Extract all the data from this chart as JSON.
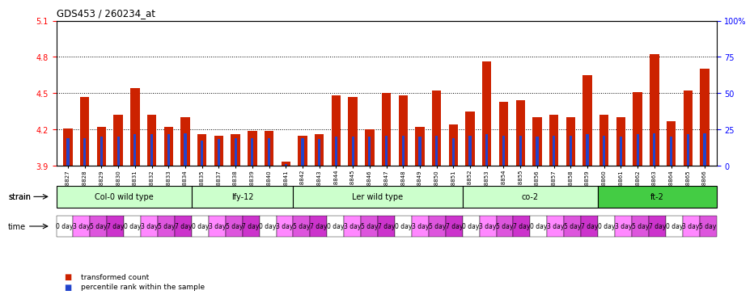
{
  "title": "GDS453 / 260234_at",
  "bar_baseline": 3.9,
  "ylim": [
    3.9,
    5.1
  ],
  "yticks": [
    3.9,
    4.2,
    4.5,
    4.8,
    5.1
  ],
  "right_yticks": [
    0,
    25,
    50,
    75,
    100
  ],
  "right_ylabels": [
    "0",
    "25",
    "50",
    "75",
    "100%"
  ],
  "gsm_labels": [
    "GSM8827",
    "GSM8828",
    "GSM8829",
    "GSM8830",
    "GSM8831",
    "GSM8832",
    "GSM8833",
    "GSM8834",
    "GSM8835",
    "GSM8837",
    "GSM8838",
    "GSM8839",
    "GSM8840",
    "GSM8841",
    "GSM8842",
    "GSM8843",
    "GSM8844",
    "GSM8845",
    "GSM8846",
    "GSM8847",
    "GSM8848",
    "GSM8849",
    "GSM8850",
    "GSM8851",
    "GSM8852",
    "GSM8853",
    "GSM8854",
    "GSM8855",
    "GSM8856",
    "GSM8857",
    "GSM8858",
    "GSM8859",
    "GSM8860",
    "GSM8861",
    "GSM8862",
    "GSM8863",
    "GSM8864",
    "GSM8865",
    "GSM8866"
  ],
  "bar_values": [
    4.21,
    4.47,
    4.22,
    4.32,
    4.54,
    4.32,
    4.22,
    4.3,
    4.16,
    4.15,
    4.16,
    4.19,
    4.19,
    3.93,
    4.15,
    4.16,
    4.48,
    4.47,
    4.2,
    4.5,
    4.48,
    4.22,
    4.52,
    4.24,
    4.35,
    4.76,
    4.43,
    4.44,
    4.3,
    4.32,
    4.3,
    4.65,
    4.32,
    4.3,
    4.51,
    4.82,
    4.27,
    4.52,
    4.7
  ],
  "percentile_values": [
    4.13,
    4.13,
    4.14,
    4.14,
    4.16,
    4.16,
    4.16,
    4.17,
    4.11,
    4.12,
    4.13,
    4.13,
    4.13,
    3.91,
    4.13,
    4.12,
    4.14,
    4.14,
    4.14,
    4.15,
    4.15,
    4.14,
    4.15,
    4.13,
    4.15,
    4.16,
    4.15,
    4.15,
    4.14,
    4.15,
    4.15,
    4.16,
    4.15,
    4.14,
    4.16,
    4.17,
    4.14,
    4.16,
    4.17
  ],
  "strains": [
    {
      "label": "Col-0 wild type",
      "start": 0,
      "end": 8,
      "color": "#ccffcc"
    },
    {
      "label": "lfy-12",
      "start": 8,
      "end": 14,
      "color": "#ccffcc"
    },
    {
      "label": "Ler wild type",
      "start": 14,
      "end": 24,
      "color": "#ccffcc"
    },
    {
      "label": "co-2",
      "start": 24,
      "end": 32,
      "color": "#ccffcc"
    },
    {
      "label": "ft-2",
      "start": 32,
      "end": 39,
      "color": "#44cc44"
    }
  ],
  "time_labels": [
    "0 day",
    "3 day",
    "5 day",
    "7 day"
  ],
  "time_colors": [
    "#ffffff",
    "#ff88ff",
    "#dd55dd",
    "#cc33cc"
  ],
  "bar_color": "#cc2200",
  "percentile_color": "#2244cc",
  "bg_color": "#ffffff",
  "plot_bg": "#ffffff"
}
